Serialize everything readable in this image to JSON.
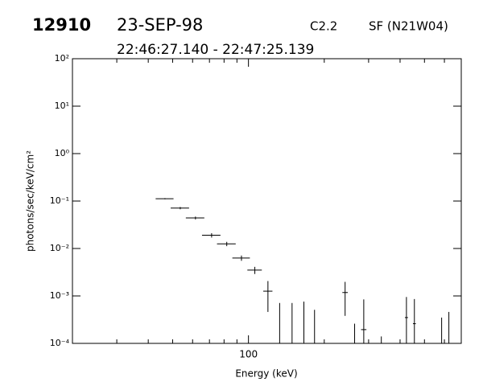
{
  "chart_data": {
    "type": "scatter",
    "header": {
      "id": "12910",
      "date": "23-SEP-98",
      "class": "C2.2",
      "location": "SF (N21W04)",
      "time_range": "22:46:27.140 - 22:47:25.139"
    },
    "xlabel": "Energy (keV)",
    "ylabel": "photons/sec/keV/cm²",
    "xscale": "log",
    "yscale": "log",
    "xlim": [
      20,
      700
    ],
    "ylim": [
      0.0001,
      100
    ],
    "xticks": [
      100
    ],
    "xminor": [
      20,
      30,
      40,
      50,
      60,
      70,
      80,
      90,
      200,
      300,
      400,
      500,
      600,
      700
    ],
    "yticks": [
      {
        "value": 0.0001,
        "label": "10⁻⁴"
      },
      {
        "value": 0.001,
        "label": "10⁻³"
      },
      {
        "value": 0.01,
        "label": "10⁻²"
      },
      {
        "value": 0.1,
        "label": "10⁻¹"
      },
      {
        "value": 1,
        "label": "10⁰"
      },
      {
        "value": 10,
        "label": "10¹"
      },
      {
        "value": 100,
        "label": "10²"
      }
    ],
    "color": "#000000",
    "x": [
      46.6,
      53.6,
      61.6,
      71.4,
      82,
      93.8,
      106,
      119.5,
      242,
      287,
      424,
      456
    ],
    "values": [
      0.112,
      0.071,
      0.044,
      0.019,
      0.0125,
      0.0063,
      0.0035,
      0.00126,
      0.00118,
      0.000195,
      0.00035,
      0.00026
    ],
    "xerr": [
      3.8,
      4.5,
      5.2,
      6,
      7,
      7.5,
      7,
      5,
      6,
      7,
      6,
      6
    ],
    "yerr": [
      0.003,
      0.004,
      0.003,
      0.002,
      0.0013,
      0.0008,
      0.0006,
      0.0008,
      0.0008,
      0.00065,
      0.0006,
      0.0006
    ],
    "upper_x": [
      133,
      149,
      166,
      183,
      264,
      337,
      585,
      625
    ],
    "upper_values": [
      0.00071,
      0.00071,
      0.00076,
      0.00051,
      0.00026,
      0.00014,
      0.00035,
      0.00046
    ]
  }
}
